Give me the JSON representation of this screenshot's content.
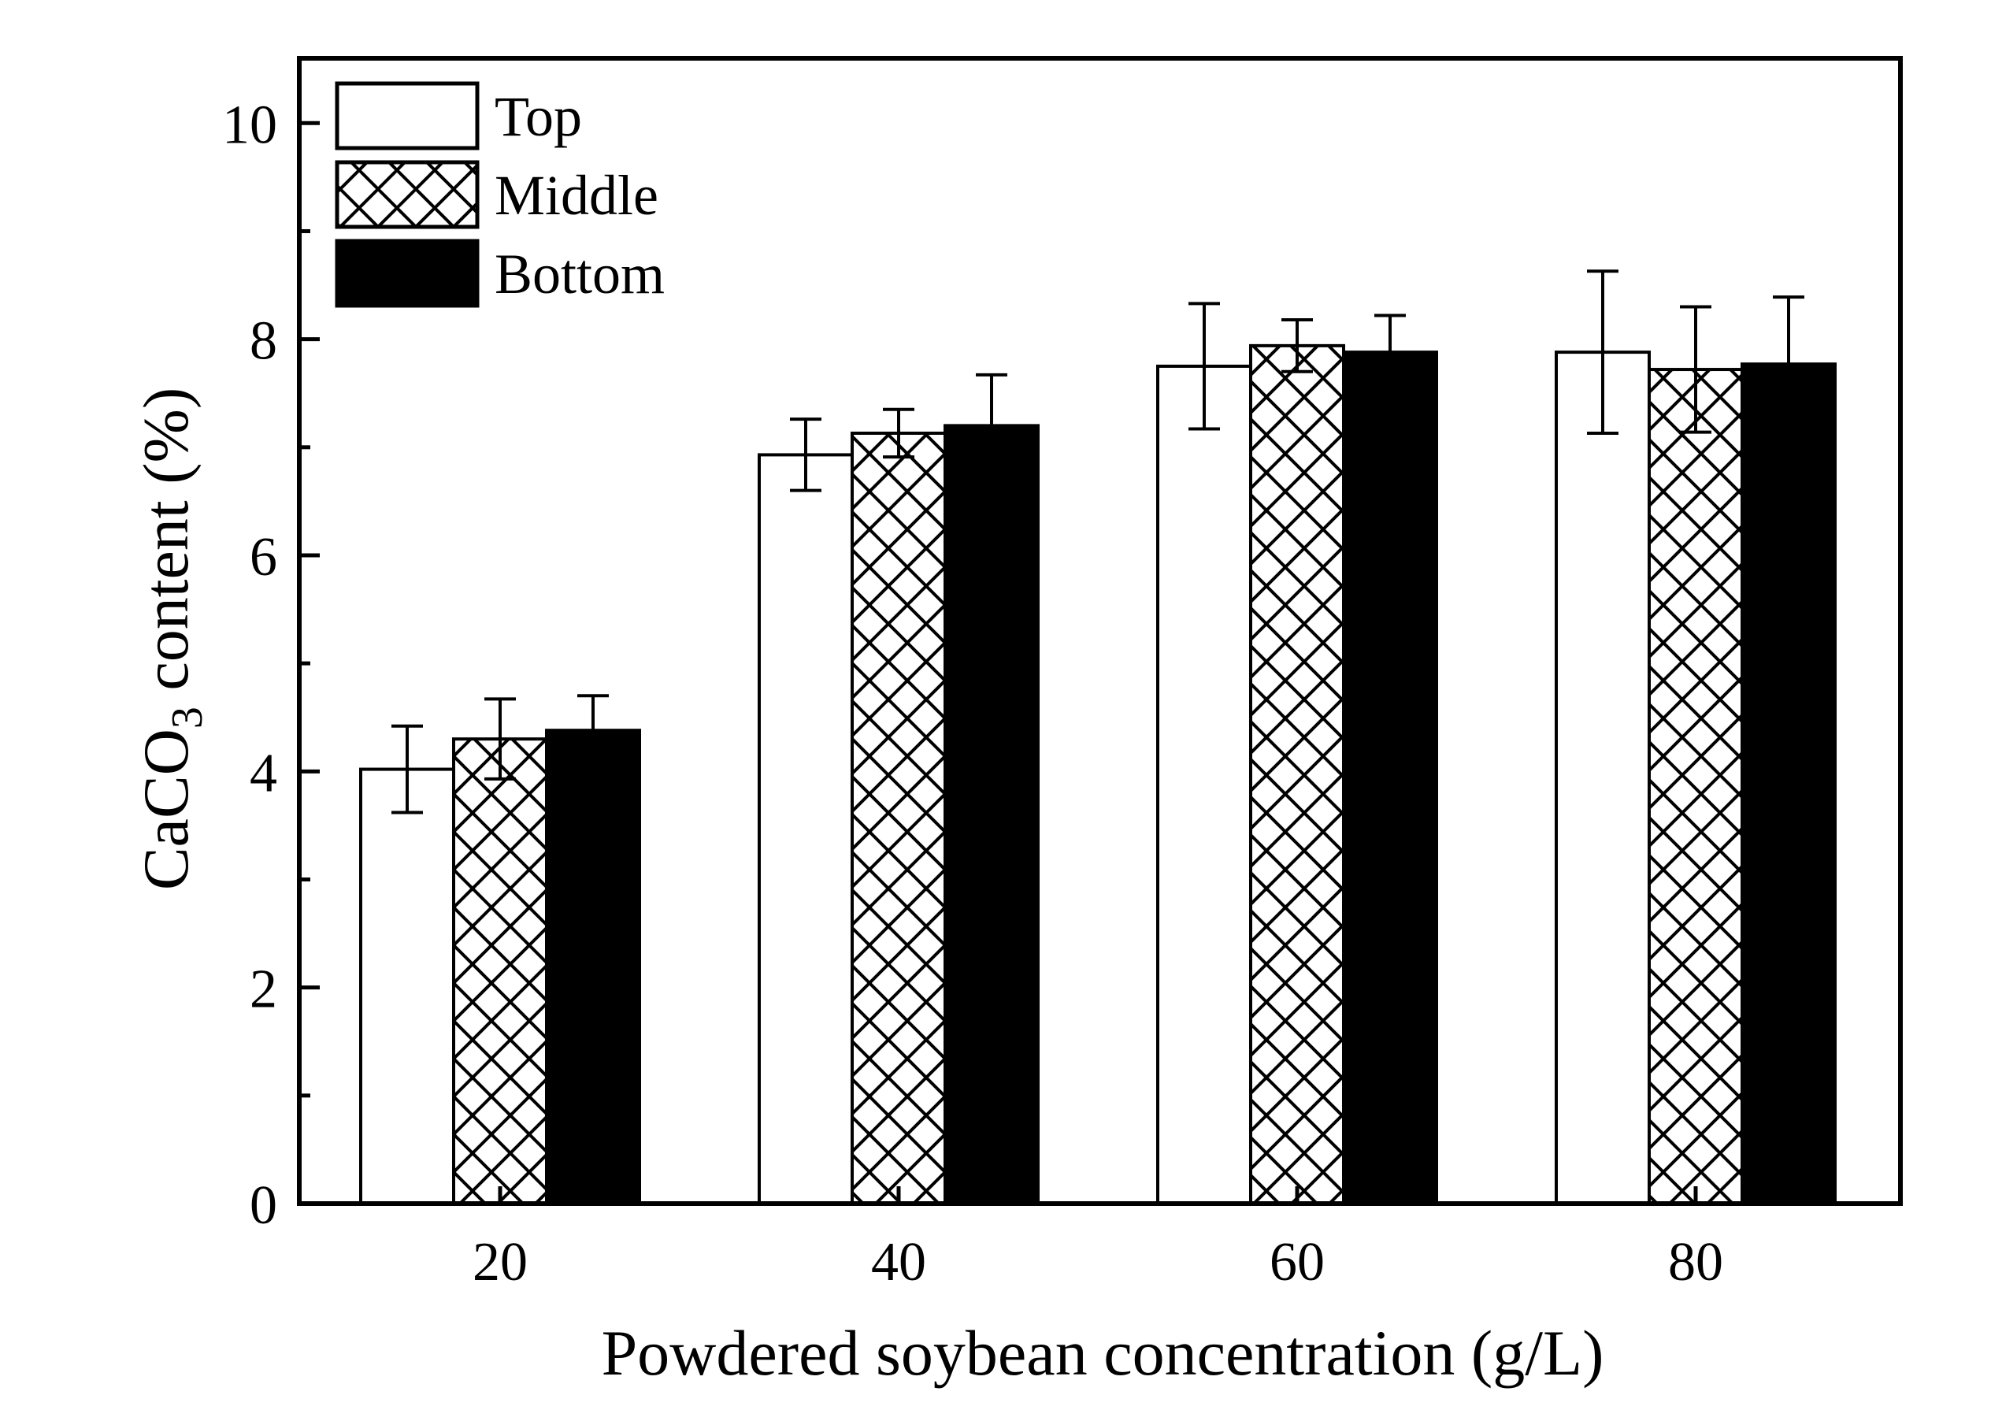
{
  "chart_data": {
    "type": "bar",
    "title": "",
    "xlabel": "Powdered soybean concentration (g/L)",
    "ylabel": {
      "prefix": "CaCO",
      "subscript": "3",
      "suffix": " content (%)"
    },
    "categories": [
      "20",
      "40",
      "60",
      "80"
    ],
    "ylim": [
      0,
      10.6
    ],
    "yticks": [
      "0",
      "2",
      "4",
      "6",
      "8",
      "10"
    ],
    "legend_position": "top-left",
    "series": [
      {
        "name": "Top",
        "fill": "white",
        "values": [
          4.02,
          6.93,
          7.75,
          7.88
        ],
        "errors": [
          0.4,
          0.33,
          0.58,
          0.75
        ]
      },
      {
        "name": "Middle",
        "fill": "crosshatch",
        "values": [
          4.3,
          7.13,
          7.94,
          7.72
        ],
        "errors": [
          0.37,
          0.22,
          0.24,
          0.58
        ]
      },
      {
        "name": "Bottom",
        "fill": "black",
        "values": [
          4.38,
          7.2,
          7.88,
          7.77
        ],
        "errors": [
          0.32,
          0.47,
          0.34,
          0.62
        ]
      }
    ]
  }
}
